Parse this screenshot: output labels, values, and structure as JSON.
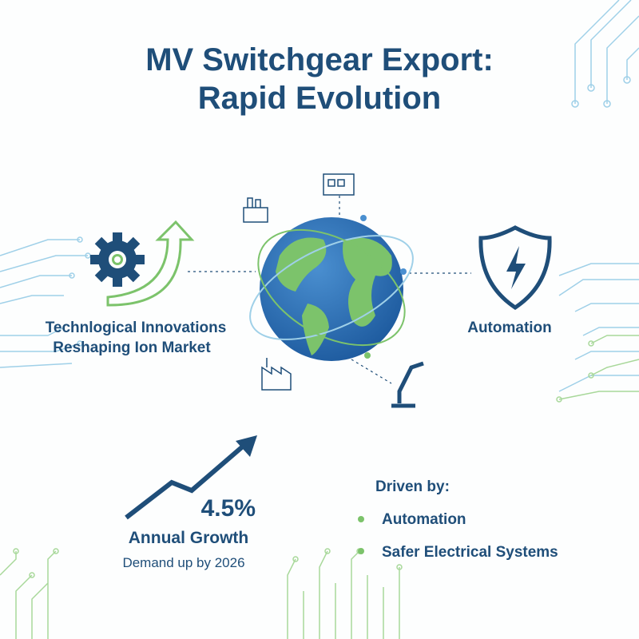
{
  "header": {
    "title_lines": [
      "MV Switchgear Export:",
      "Rapid Evolution"
    ]
  },
  "left_panel": {
    "lines": [
      "Technlogical Innovations",
      "Reshaping Ion Market"
    ]
  },
  "right_panel": {
    "label": "Automation"
  },
  "growth": {
    "figure": "4.5%",
    "label": "Annual Growth",
    "note": "Demand up by 2026"
  },
  "drivers": {
    "heading": "Driven by:",
    "items": [
      "Automation",
      "Safer Electrical Systems"
    ]
  }
}
